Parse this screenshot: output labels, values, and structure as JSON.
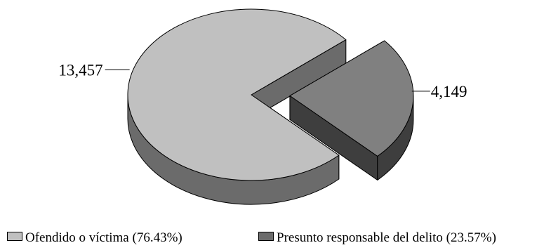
{
  "chart_data": {
    "type": "pie",
    "title": "",
    "three_d": true,
    "exploded_slice": "Presunto responsable del delito",
    "slices": [
      {
        "name": "Ofendido o víctima",
        "value": 13457,
        "percent": 76.43,
        "label": "13,457",
        "color": "#c0c0c0",
        "side_color": "#6b6b6b"
      },
      {
        "name": "Presunto responsable del delito",
        "value": 4149,
        "percent": 23.57,
        "label": "4,149",
        "color": "#808080",
        "side_color": "#3e3e3e"
      }
    ],
    "legend": {
      "position": "bottom",
      "items": [
        {
          "text": "Ofendido o víctima (76.43%)",
          "color": "#c0c0c0"
        },
        {
          "text": "Presunto responsable del delito (23.57%)",
          "color": "#6b6b6b"
        }
      ]
    }
  }
}
